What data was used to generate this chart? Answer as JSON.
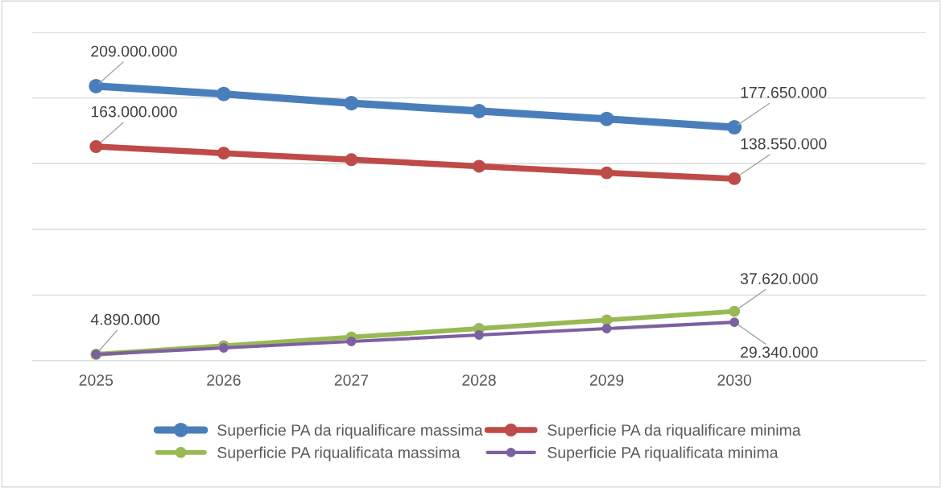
{
  "chart_data": {
    "type": "line",
    "categories": [
      "2025",
      "2026",
      "2027",
      "2028",
      "2029",
      "2030"
    ],
    "series": [
      {
        "name": "Superficie PA da riqualificare massima",
        "color": "#4a7ebb",
        "values": [
          209000000,
          203000000,
          196000000,
          190000000,
          184000000,
          177650000
        ],
        "value_labels": [
          "209.000.000",
          null,
          null,
          null,
          null,
          "177.650.000"
        ]
      },
      {
        "name": "Superficie PA da riqualificare minima",
        "color": "#be4b48",
        "values": [
          163000000,
          158000000,
          153000000,
          148000000,
          143000000,
          138550000
        ],
        "value_labels": [
          "163.000.000",
          null,
          null,
          null,
          null,
          "138.550.000"
        ]
      },
      {
        "name": "Superficie PA riqualificata massima",
        "color": "#98b954",
        "values": [
          4890000,
          11400000,
          18000000,
          24500000,
          31000000,
          37620000
        ],
        "value_labels": [
          "4.890.000",
          null,
          null,
          null,
          null,
          "37.620.000"
        ]
      },
      {
        "name": "Superficie PA riqualificata minima",
        "color": "#7d60a0",
        "values": [
          4890000,
          9800000,
          14700000,
          19600000,
          24500000,
          29340000
        ],
        "value_labels": [
          null,
          null,
          null,
          null,
          null,
          "29.340.000"
        ]
      }
    ],
    "ylim": [
      0,
      250000000
    ],
    "yticks": [
      {
        "value": 0,
        "label": null
      },
      {
        "value": 50000000,
        "label": null
      },
      {
        "value": 100000000,
        "label": null
      },
      {
        "value": 150000000,
        "label": null
      },
      {
        "value": 200000000,
        "label": null
      },
      {
        "value": 250000000,
        "label": null
      }
    ],
    "tick_labels": "x",
    "grid": "y",
    "legend": "bottom",
    "marker": "circle",
    "line_style": "solid"
  }
}
